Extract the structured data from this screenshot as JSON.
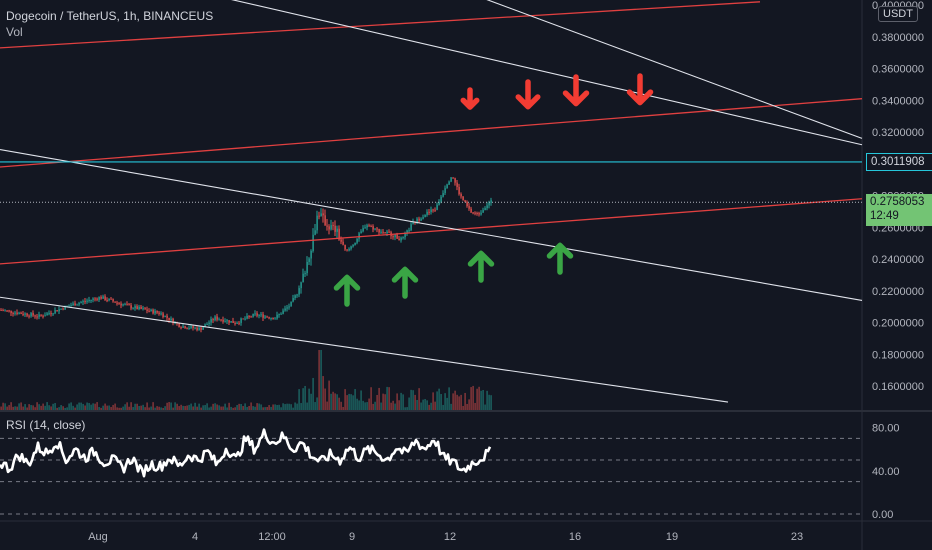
{
  "legend": {
    "symbol": "Dogecoin / TetherUS, 1h, BINANCEUS",
    "volume": "Vol",
    "rsi": "RSI (14, close)"
  },
  "currency": "USDT",
  "price_tags": {
    "resistance": "0.3011908",
    "last_price": "0.2758053",
    "countdown": "12:49"
  },
  "colors": {
    "background": "#131722",
    "up": "#26a69a",
    "down": "#ef5350",
    "trendline_red": "#e04040",
    "trendline_white": "#e0e3eb",
    "resistance": "#26c6da",
    "arrow_up": "#3aa545",
    "arrow_down": "#f23c33"
  },
  "chart_data": [
    {
      "type": "candlestick",
      "title": "Dogecoin / TetherUS, 1h, BINANCEUS",
      "y_ticks": [
        "0.4000000",
        "0.3800000",
        "0.3600000",
        "0.3400000",
        "0.3200000",
        "0.2800000",
        "0.2600000",
        "0.2400000",
        "0.2200000",
        "0.2000000",
        "0.1800000",
        "0.1600000"
      ],
      "x_ticks": [
        "Aug",
        "4",
        "12:00",
        "9",
        "12",
        "16",
        "19",
        "23"
      ],
      "ylim": [
        0.145,
        0.4
      ],
      "close_path": [
        [
          0,
          0.208
        ],
        [
          40,
          0.204
        ],
        [
          70,
          0.211
        ],
        [
          100,
          0.216
        ],
        [
          130,
          0.21
        ],
        [
          160,
          0.206
        ],
        [
          180,
          0.198
        ],
        [
          200,
          0.196
        ],
        [
          215,
          0.203
        ],
        [
          235,
          0.2
        ],
        [
          255,
          0.205
        ],
        [
          275,
          0.203
        ],
        [
          290,
          0.211
        ],
        [
          300,
          0.222
        ],
        [
          310,
          0.245
        ],
        [
          318,
          0.27
        ],
        [
          326,
          0.262
        ],
        [
          336,
          0.258
        ],
        [
          346,
          0.244
        ],
        [
          356,
          0.252
        ],
        [
          366,
          0.262
        ],
        [
          378,
          0.258
        ],
        [
          390,
          0.256
        ],
        [
          402,
          0.252
        ],
        [
          412,
          0.262
        ],
        [
          424,
          0.268
        ],
        [
          436,
          0.272
        ],
        [
          446,
          0.287
        ],
        [
          452,
          0.293
        ],
        [
          460,
          0.28
        ],
        [
          470,
          0.27
        ],
        [
          478,
          0.268
        ],
        [
          486,
          0.274
        ],
        [
          491,
          0.276
        ]
      ],
      "horizontal_levels": [
        0.3011908,
        0.2758053
      ],
      "trendlines": [
        {
          "color": "red",
          "from": [
            0,
            0.373
          ],
          "to": [
            760,
            0.402
          ]
        },
        {
          "color": "red",
          "from": [
            0,
            0.298
          ],
          "to": [
            862,
            0.341
          ]
        },
        {
          "color": "red",
          "from": [
            0,
            0.237
          ],
          "to": [
            862,
            0.278
          ]
        },
        {
          "color": "white",
          "from": [
            0,
            0.437
          ],
          "to": [
            862,
            0.312
          ]
        },
        {
          "color": "white",
          "from": [
            0,
            0.309
          ],
          "to": [
            862,
            0.214
          ]
        },
        {
          "color": "white",
          "from": [
            0,
            0.216
          ],
          "to": [
            728,
            0.15
          ]
        },
        {
          "color": "white",
          "from": [
            480,
            0.405
          ],
          "to": [
            862,
            0.316
          ]
        }
      ],
      "annotations": {
        "down_arrows_x": [
          470,
          528,
          576,
          640
        ],
        "up_arrows_x": [
          347,
          405,
          481,
          560
        ]
      }
    },
    {
      "type": "line",
      "title": "RSI (14, close)",
      "y_ticks": [
        "80.00",
        "40.00",
        "0.00"
      ],
      "ylim": [
        0,
        100
      ],
      "levels": [
        70,
        50,
        30
      ],
      "values": [
        48,
        42,
        55,
        46,
        62,
        56,
        68,
        50,
        60,
        52,
        58,
        48,
        50,
        42,
        52,
        38,
        46,
        44,
        52,
        44,
        55,
        50,
        58,
        45,
        62,
        50,
        70,
        60,
        75,
        66,
        72,
        60,
        66,
        54,
        48,
        55,
        50,
        62,
        52,
        60,
        56,
        50,
        62,
        55,
        68,
        60,
        70,
        52,
        48,
        40,
        47,
        52,
        58
      ]
    }
  ]
}
